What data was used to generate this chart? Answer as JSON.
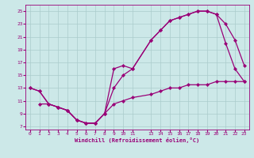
{
  "xlabel": "Windchill (Refroidissement éolien,°C)",
  "bg_color": "#cce8e8",
  "line_color": "#990077",
  "grid_color": "#aacccc",
  "xlim": [
    -0.5,
    23.5
  ],
  "ylim": [
    6.5,
    26.0
  ],
  "xticks": [
    0,
    1,
    2,
    3,
    4,
    5,
    6,
    7,
    8,
    9,
    10,
    11,
    13,
    14,
    15,
    16,
    17,
    18,
    19,
    20,
    21,
    22,
    23
  ],
  "yticks": [
    7,
    9,
    11,
    13,
    15,
    17,
    19,
    21,
    23,
    25
  ],
  "line1_x": [
    0,
    1,
    2,
    3,
    4,
    5,
    6,
    7,
    8,
    9,
    10,
    11,
    13,
    14,
    15,
    16,
    17,
    18,
    19,
    20,
    21,
    22,
    23
  ],
  "line1_y": [
    13,
    12.5,
    10.5,
    10,
    9.5,
    8,
    7.5,
    7.5,
    9,
    16,
    16.5,
    16,
    20.5,
    22,
    23.5,
    24,
    24.5,
    25,
    25,
    24.5,
    20,
    16,
    14
  ],
  "line2_x": [
    0,
    1,
    2,
    3,
    4,
    5,
    6,
    7,
    8,
    9,
    10,
    11,
    13,
    14,
    15,
    16,
    17,
    18,
    19,
    20,
    21,
    22,
    23
  ],
  "line2_y": [
    13,
    12.5,
    10.5,
    10,
    9.5,
    8,
    7.5,
    7.5,
    9,
    13,
    15,
    16,
    20.5,
    22,
    23.5,
    24,
    24.5,
    25,
    25,
    24.5,
    23,
    20.5,
    16.5
  ],
  "line3_x": [
    1,
    2,
    3,
    4,
    5,
    6,
    7,
    8,
    9,
    10,
    11,
    13,
    14,
    15,
    16,
    17,
    18,
    19,
    20,
    21,
    22,
    23
  ],
  "line3_y": [
    10.5,
    10.5,
    10,
    9.5,
    8,
    7.5,
    7.5,
    9,
    10.5,
    11,
    11.5,
    12,
    12.5,
    13,
    13,
    13.5,
    13.5,
    13.5,
    14,
    14,
    14,
    14
  ]
}
